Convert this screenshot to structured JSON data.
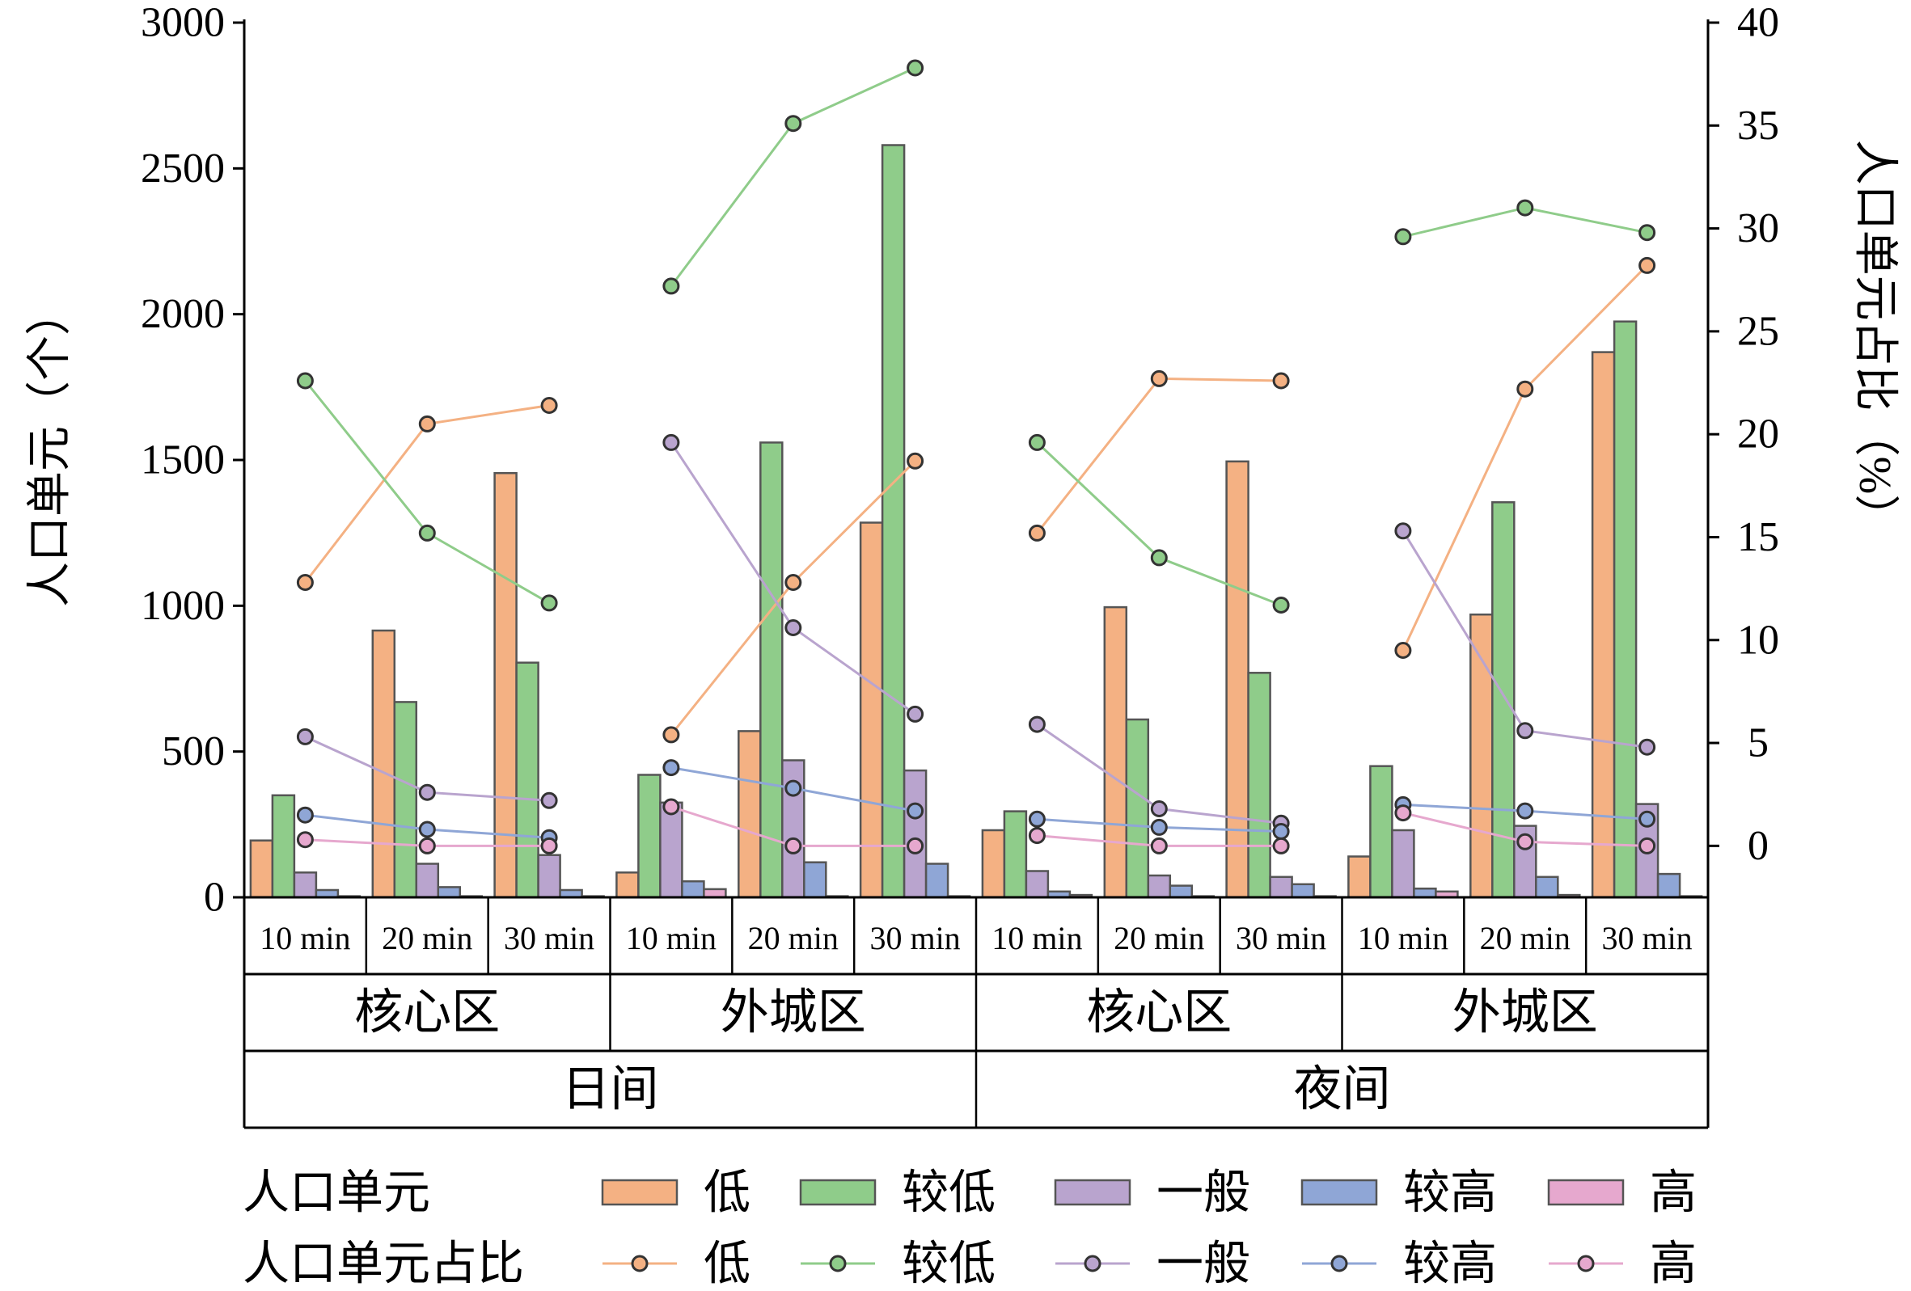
{
  "chart_data": {
    "type": "bar+line",
    "ylabel_left": "人口单元（个）",
    "ylabel_right": "人口单元占比（%）",
    "ylim_left": [
      0,
      3000
    ],
    "yticks_left": [
      "0",
      "500",
      "1000",
      "1500",
      "2000",
      "2500",
      "3000"
    ],
    "ylim_right": [
      -2.5,
      40
    ],
    "yticks_right": [
      "0",
      "5",
      "10",
      "15",
      "20",
      "25",
      "30",
      "35",
      "40"
    ],
    "grid": false,
    "categories": [
      "10 min",
      "20 min",
      "30 min",
      "10 min",
      "20 min",
      "30 min",
      "10 min",
      "20 min",
      "30 min",
      "10 min",
      "20 min",
      "30 min"
    ],
    "groups_level2": [
      "核心区",
      "外城区",
      "核心区",
      "外城区"
    ],
    "groups_level1": [
      "日间",
      "夜间"
    ],
    "colors": {
      "低": "#F4B183",
      "较低": "#8FCC8A",
      "一般": "#B9A4CE",
      "较高": "#8FA6D6",
      "高": "#E6A8CE"
    },
    "bar_series": [
      {
        "name": "低",
        "values": [
          195,
          915,
          1455,
          85,
          570,
          1285,
          230,
          995,
          1495,
          140,
          970,
          1870
        ]
      },
      {
        "name": "较低",
        "values": [
          350,
          670,
          805,
          420,
          1560,
          2580,
          295,
          610,
          770,
          450,
          1355,
          1975
        ]
      },
      {
        "name": "一般",
        "values": [
          85,
          115,
          145,
          325,
          470,
          435,
          90,
          75,
          70,
          230,
          245,
          320
        ]
      },
      {
        "name": "较高",
        "values": [
          25,
          35,
          25,
          55,
          120,
          115,
          20,
          40,
          45,
          30,
          70,
          80
        ]
      },
      {
        "name": "高",
        "values": [
          4,
          4,
          4,
          28,
          4,
          4,
          8,
          4,
          4,
          20,
          8,
          4
        ]
      }
    ],
    "line_series": [
      {
        "name": "低",
        "values": [
          12.8,
          20.5,
          21.4,
          5.4,
          12.8,
          18.7,
          15.2,
          22.7,
          22.6,
          9.5,
          22.2,
          28.2
        ]
      },
      {
        "name": "较低",
        "values": [
          22.6,
          15.2,
          11.8,
          27.2,
          35.1,
          37.8,
          19.6,
          14.0,
          11.7,
          29.6,
          31.0,
          29.8
        ]
      },
      {
        "name": "一般",
        "values": [
          5.3,
          2.6,
          2.2,
          19.6,
          10.6,
          6.4,
          5.9,
          1.8,
          1.1,
          15.3,
          5.6,
          4.8
        ]
      },
      {
        "name": "较高",
        "values": [
          1.5,
          0.8,
          0.4,
          3.8,
          2.8,
          1.7,
          1.3,
          0.9,
          0.7,
          2.0,
          1.7,
          1.3
        ]
      },
      {
        "name": "高",
        "values": [
          0.3,
          0.0,
          0.0,
          1.9,
          0.0,
          0.0,
          0.5,
          0.0,
          0.0,
          1.6,
          0.2,
          0.0
        ]
      }
    ]
  },
  "legend": {
    "bar_title": "人口单元",
    "line_title": "人口单元占比",
    "items": [
      "低",
      "较低",
      "一般",
      "较高",
      "高"
    ]
  }
}
